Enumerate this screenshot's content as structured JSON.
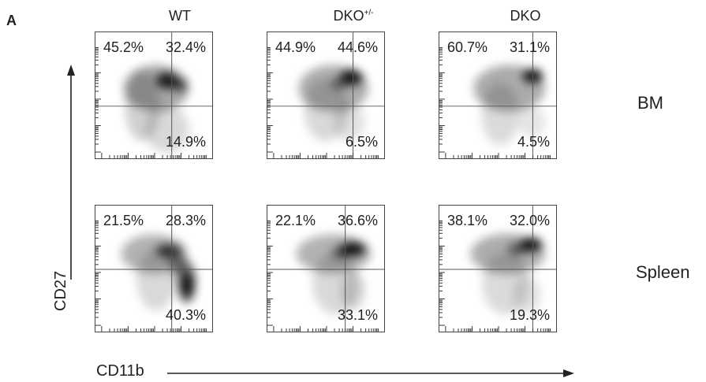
{
  "figure": {
    "panel_letter": "A",
    "columns": [
      {
        "label": "WT",
        "sup": ""
      },
      {
        "label": "DKO",
        "sup": "+/-"
      },
      {
        "label": "DKO",
        "sup": ""
      }
    ],
    "rows": [
      "BM",
      "Spleen"
    ],
    "y_axis_label": "CD27",
    "x_axis_label": "CD11b"
  },
  "chart_data": {
    "type": "table",
    "description_of_values": "Quadrant percentages of flow cytometry plots (CD11b vs CD27)",
    "rows": [
      "BM",
      "Spleen"
    ],
    "columns": [
      "WT",
      "DKO+/-",
      "DKO"
    ],
    "quadrants": [
      "upper-left",
      "upper-right",
      "lower-right"
    ],
    "values": {
      "BM": {
        "WT": {
          "upper-left": "45.2%",
          "upper-right": "32.4%",
          "lower-right": "14.9%"
        },
        "DKO+/-": {
          "upper-left": "44.9%",
          "upper-right": "44.6%",
          "lower-right": "6.5%"
        },
        "DKO": {
          "upper-left": "60.7%",
          "upper-right": "31.1%",
          "lower-right": "4.5%"
        }
      },
      "Spleen": {
        "WT": {
          "upper-left": "21.5%",
          "upper-right": "28.3%",
          "lower-right": "40.3%"
        },
        "DKO+/-": {
          "upper-left": "22.1%",
          "upper-right": "36.6%",
          "lower-right": "33.1%"
        },
        "DKO": {
          "upper-left": "38.1%",
          "upper-right": "32.0%",
          "lower-right": "19.3%"
        }
      }
    }
  }
}
